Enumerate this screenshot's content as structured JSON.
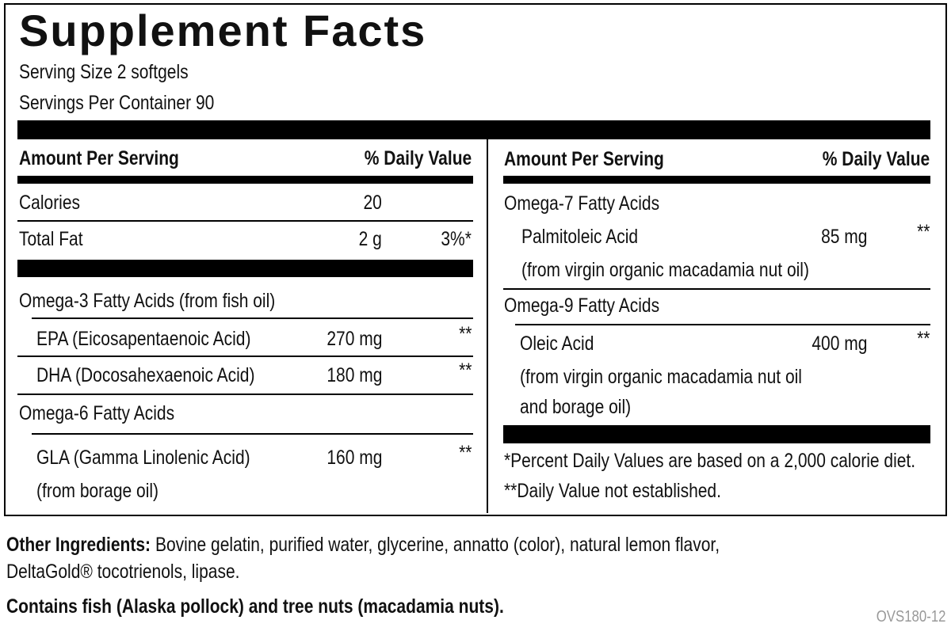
{
  "title": "Supplement Facts",
  "serving_size": "Serving Size 2 softgels",
  "servings_per_container": "Servings Per Container 90",
  "left": {
    "header": {
      "amount": "Amount Per Serving",
      "dv": "% Daily Value"
    },
    "rows": [
      {
        "name": "Calories",
        "amount": "20"
      },
      {
        "name": "Total Fat",
        "amount": "2 g",
        "dv": "3%*"
      },
      {
        "name": "Omega-3 Fatty Acids (from fish oil)"
      },
      {
        "name": "EPA (Eicosapentaenoic Acid)",
        "amount": "270 mg",
        "dv": "**"
      },
      {
        "name": "DHA (Docosahexaenoic Acid)",
        "amount": "180 mg",
        "dv": "**"
      },
      {
        "name": "Omega-6 Fatty Acids"
      },
      {
        "name": "GLA (Gamma Linolenic Acid)",
        "amount": "160 mg",
        "dv": "**",
        "notes": [
          "(from borage oil)"
        ]
      }
    ]
  },
  "right": {
    "header": {
      "amount": "Amount Per Serving",
      "dv": "% Daily Value"
    },
    "rows": [
      {
        "name": "Omega-7 Fatty Acids"
      },
      {
        "name": "Palmitoleic Acid",
        "amount": "85 mg",
        "dv": "**",
        "notes": [
          "(from virgin organic macadamia nut oil)"
        ]
      },
      {
        "name": "Omega-9 Fatty Acids"
      },
      {
        "name": "Oleic Acid",
        "amount": "400 mg",
        "dv": "**",
        "notes": [
          "(from virgin organic macadamia nut oil",
          "and borage oil)"
        ]
      }
    ],
    "footnotes": [
      "*Percent Daily Values are based on a 2,000 calorie diet.",
      "**Daily Value not established."
    ]
  },
  "other_ingredients": {
    "label": "Other Ingredients:",
    "lines": [
      "Bovine gelatin, purified water, glycerine, annatto (color), natural lemon flavor,",
      "DeltaGold® tocotrienols, lipase."
    ]
  },
  "allergens": "Contains fish (Alaska pollock) and tree nuts (macadamia nuts).",
  "code": "OVS180-12"
}
